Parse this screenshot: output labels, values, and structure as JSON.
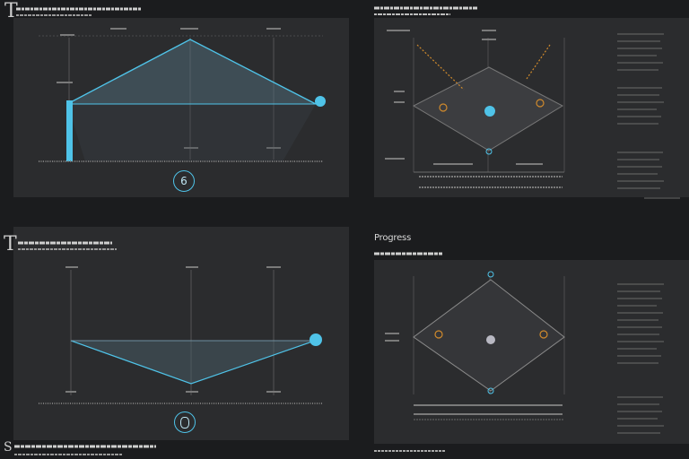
{
  "panels": {
    "top_left": {
      "big_letter": "T",
      "badge": "6"
    },
    "bottom_left": {
      "big_letter": "T"
    },
    "bottom_right": {
      "title": "Progress"
    }
  },
  "footer": {
    "big_letter": "S"
  },
  "colors": {
    "cyan": "#4fc3e8",
    "orange": "#d08a2c",
    "gray_node": "#b8b8c2",
    "panel_bg": "#2b2c2e",
    "page_bg": "#1b1c1e"
  }
}
